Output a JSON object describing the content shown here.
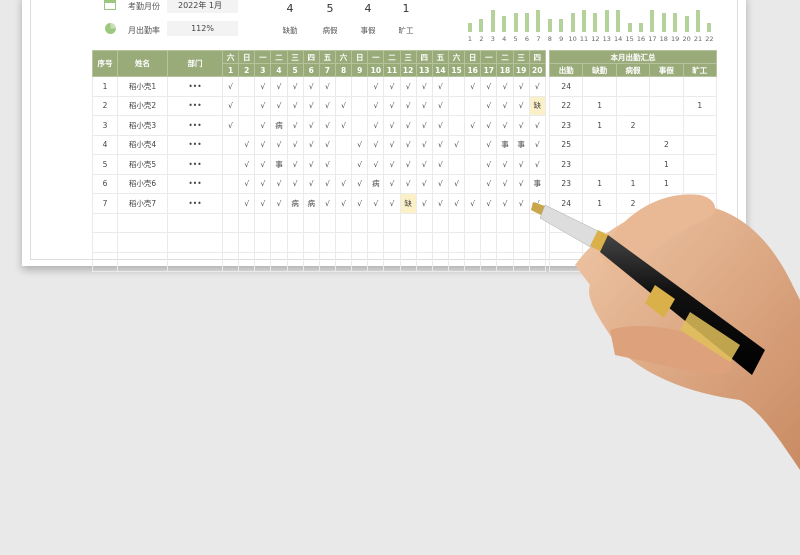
{
  "info": {
    "month_label": "考勤月份",
    "month_value": "2022年 1月",
    "rate_label": "月出勤率",
    "rate_value": "112%"
  },
  "stats": [
    {
      "value": "4",
      "label": "缺勤"
    },
    {
      "value": "5",
      "label": "病假"
    },
    {
      "value": "4",
      "label": "事假"
    },
    {
      "value": "1",
      "label": "旷工"
    }
  ],
  "chart_data": {
    "type": "bar",
    "categories": [
      "1",
      "2",
      "3",
      "4",
      "5",
      "6",
      "7",
      "8",
      "9",
      "10",
      "11",
      "12",
      "13",
      "14",
      "15",
      "16",
      "17",
      "18",
      "19",
      "20",
      "21",
      "22"
    ],
    "values": [
      3,
      4,
      7,
      5,
      6,
      6,
      7,
      4,
      4,
      6,
      7,
      6,
      7,
      7,
      3,
      3,
      7,
      6,
      6,
      5,
      7,
      3
    ],
    "color": "#b4d29a"
  },
  "table": {
    "headers": {
      "index": "序号",
      "name": "姓名",
      "dept": "部门",
      "summary": "本月出勤汇总"
    },
    "weekdays": [
      "六",
      "日",
      "一",
      "二",
      "三",
      "四",
      "五",
      "六",
      "日",
      "一",
      "二",
      "三",
      "四",
      "五",
      "六",
      "日",
      "一",
      "二",
      "三",
      "四"
    ],
    "days": [
      "1",
      "2",
      "3",
      "4",
      "5",
      "6",
      "7",
      "8",
      "9",
      "10",
      "11",
      "12",
      "13",
      "14",
      "15",
      "16",
      "17",
      "18",
      "19",
      "20"
    ],
    "summary_cols": [
      "出勤",
      "缺勤",
      "病假",
      "事假",
      "旷工"
    ],
    "rows": [
      {
        "index": "1",
        "name": "稻小壳1",
        "dept": "•••",
        "marks": [
          "√",
          "",
          "√",
          "√",
          "√",
          "√",
          "√",
          "",
          "",
          "√",
          "√",
          "√",
          "√",
          "√",
          "",
          "√",
          "√",
          "√",
          "√",
          "√"
        ],
        "summary": [
          "24",
          "",
          "",
          "",
          ""
        ]
      },
      {
        "index": "2",
        "name": "稻小壳2",
        "dept": "•••",
        "marks": [
          "√",
          "",
          "√",
          "√",
          "√",
          "√",
          "√",
          "√",
          "",
          "√",
          "√",
          "√",
          "√",
          "√",
          "",
          "",
          "√",
          "√",
          "√",
          "缺"
        ],
        "summary": [
          "22",
          "1",
          "",
          "",
          "1"
        ]
      },
      {
        "index": "3",
        "name": "稻小壳3",
        "dept": "•••",
        "marks": [
          "√",
          "",
          "√",
          "病",
          "√",
          "√",
          "√",
          "√",
          "",
          "√",
          "√",
          "√",
          "√",
          "√",
          "",
          "√",
          "√",
          "√",
          "√",
          "√"
        ],
        "summary": [
          "23",
          "1",
          "2",
          "",
          ""
        ]
      },
      {
        "index": "4",
        "name": "稻小壳4",
        "dept": "•••",
        "marks": [
          "",
          "√",
          "√",
          "√",
          "√",
          "√",
          "√",
          "",
          "√",
          "√",
          "√",
          "√",
          "√",
          "√",
          "√",
          "",
          "√",
          "事",
          "事",
          "√"
        ],
        "summary": [
          "25",
          "",
          "",
          "2",
          ""
        ]
      },
      {
        "index": "5",
        "name": "稻小壳5",
        "dept": "•••",
        "marks": [
          "",
          "√",
          "√",
          "事",
          "√",
          "√",
          "√",
          "",
          "√",
          "√",
          "√",
          "√",
          "√",
          "√",
          "",
          "",
          "√",
          "√",
          "√",
          "√"
        ],
        "summary": [
          "23",
          "",
          "",
          "1",
          ""
        ]
      },
      {
        "index": "6",
        "name": "稻小壳6",
        "dept": "•••",
        "marks": [
          "",
          "√",
          "√",
          "√",
          "√",
          "√",
          "√",
          "√",
          "√",
          "病",
          "√",
          "√",
          "√",
          "√",
          "√",
          "",
          "√",
          "√",
          "√",
          "事"
        ],
        "summary": [
          "23",
          "1",
          "1",
          "1",
          ""
        ]
      },
      {
        "index": "7",
        "name": "稻小壳7",
        "dept": "•••",
        "marks": [
          "",
          "√",
          "√",
          "√",
          "病",
          "病",
          "√",
          "√",
          "√",
          "√",
          "√",
          "缺",
          "√",
          "√",
          "√",
          "√",
          "√",
          "√",
          "√",
          "√"
        ],
        "summary": [
          "24",
          "1",
          "2",
          "",
          ""
        ]
      }
    ],
    "empty_rows": 3
  },
  "colors": {
    "header": "#9aab7a",
    "bar": "#b4d29a",
    "absent_highlight": "#fbf0c8"
  }
}
